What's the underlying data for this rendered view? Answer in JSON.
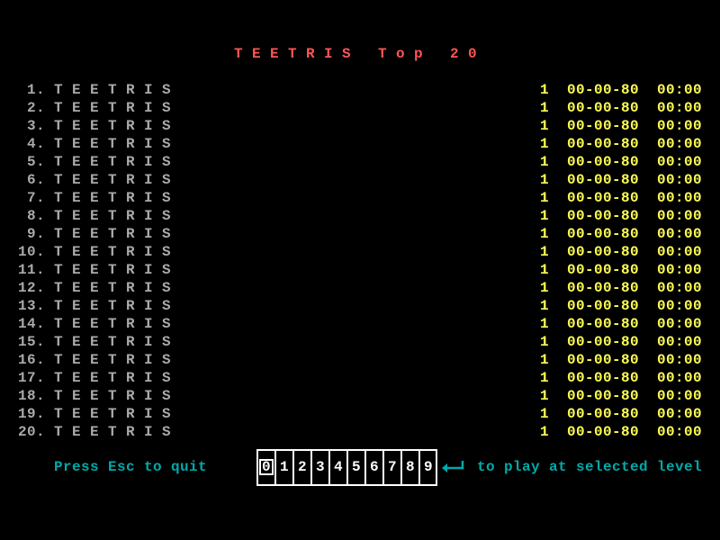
{
  "header": {
    "title": "TEETRIS Top 20"
  },
  "table": {
    "rows": [
      {
        "rank": "1.",
        "name": "TEETRIS",
        "level": "1",
        "date": "00-00-80",
        "time": "00:00"
      },
      {
        "rank": "2.",
        "name": "TEETRIS",
        "level": "1",
        "date": "00-00-80",
        "time": "00:00"
      },
      {
        "rank": "3.",
        "name": "TEETRIS",
        "level": "1",
        "date": "00-00-80",
        "time": "00:00"
      },
      {
        "rank": "4.",
        "name": "TEETRIS",
        "level": "1",
        "date": "00-00-80",
        "time": "00:00"
      },
      {
        "rank": "5.",
        "name": "TEETRIS",
        "level": "1",
        "date": "00-00-80",
        "time": "00:00"
      },
      {
        "rank": "6.",
        "name": "TEETRIS",
        "level": "1",
        "date": "00-00-80",
        "time": "00:00"
      },
      {
        "rank": "7.",
        "name": "TEETRIS",
        "level": "1",
        "date": "00-00-80",
        "time": "00:00"
      },
      {
        "rank": "8.",
        "name": "TEETRIS",
        "level": "1",
        "date": "00-00-80",
        "time": "00:00"
      },
      {
        "rank": "9.",
        "name": "TEETRIS",
        "level": "1",
        "date": "00-00-80",
        "time": "00:00"
      },
      {
        "rank": "10.",
        "name": "TEETRIS",
        "level": "1",
        "date": "00-00-80",
        "time": "00:00"
      },
      {
        "rank": "11.",
        "name": "TEETRIS",
        "level": "1",
        "date": "00-00-80",
        "time": "00:00"
      },
      {
        "rank": "12.",
        "name": "TEETRIS",
        "level": "1",
        "date": "00-00-80",
        "time": "00:00"
      },
      {
        "rank": "13.",
        "name": "TEETRIS",
        "level": "1",
        "date": "00-00-80",
        "time": "00:00"
      },
      {
        "rank": "14.",
        "name": "TEETRIS",
        "level": "1",
        "date": "00-00-80",
        "time": "00:00"
      },
      {
        "rank": "15.",
        "name": "TEETRIS",
        "level": "1",
        "date": "00-00-80",
        "time": "00:00"
      },
      {
        "rank": "16.",
        "name": "TEETRIS",
        "level": "1",
        "date": "00-00-80",
        "time": "00:00"
      },
      {
        "rank": "17.",
        "name": "TEETRIS",
        "level": "1",
        "date": "00-00-80",
        "time": "00:00"
      },
      {
        "rank": "18.",
        "name": "TEETRIS",
        "level": "1",
        "date": "00-00-80",
        "time": "00:00"
      },
      {
        "rank": "19.",
        "name": "TEETRIS",
        "level": "1",
        "date": "00-00-80",
        "time": "00:00"
      },
      {
        "rank": "20.",
        "name": "TEETRIS",
        "level": "1",
        "date": "00-00-80",
        "time": "00:00"
      }
    ]
  },
  "footer": {
    "quit": "Press Esc to quit",
    "levels": [
      "0",
      "1",
      "2",
      "3",
      "4",
      "5",
      "6",
      "7",
      "8",
      "9"
    ],
    "selected": 0,
    "play": "to play at selected level"
  }
}
